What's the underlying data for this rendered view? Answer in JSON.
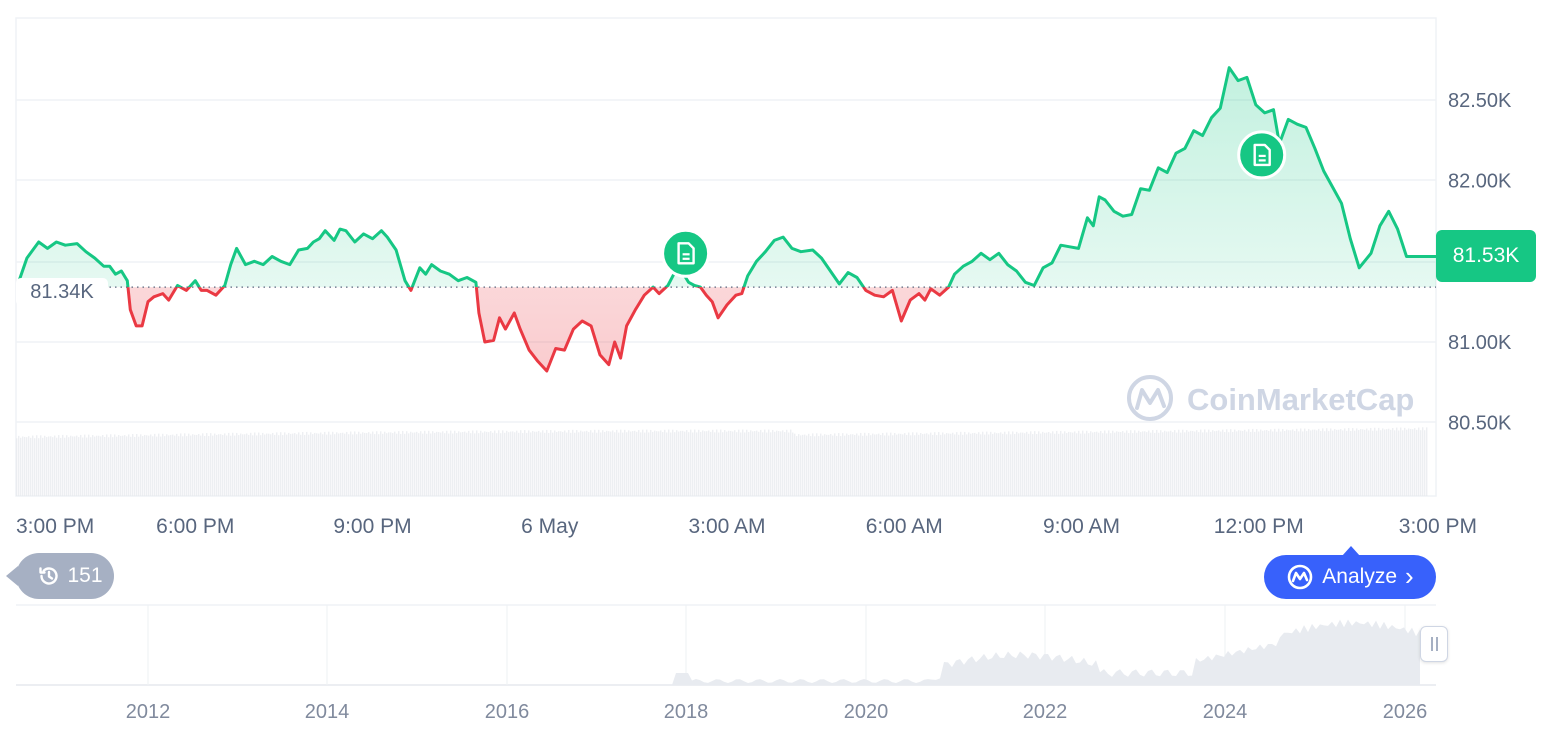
{
  "chart_data": {
    "type": "area",
    "y_label_last": "81.53K",
    "baseline_label": "81.34K",
    "baseline": 81340,
    "ylim": [
      80400,
      82980
    ],
    "y_ticks": [
      {
        "value": 82500,
        "label": "82.50K"
      },
      {
        "value": 82000,
        "label": "82.00K"
      },
      {
        "value": 81000,
        "label": "81.00K"
      },
      {
        "value": 80500,
        "label": "80.50K"
      }
    ],
    "x_ticks": [
      "3:00 PM",
      "6:00 PM",
      "9:00 PM",
      "6 May",
      "3:00 AM",
      "6:00 AM",
      "9:00 AM",
      "12:00 PM",
      "3:00 PM"
    ],
    "x_tick_hours": [
      0,
      3,
      6,
      9,
      12,
      15,
      18,
      21,
      24
    ],
    "x_range_hours": [
      -0.05,
      24
    ],
    "series": [
      {
        "up_color": "#16c784",
        "down_color": "#ea3943",
        "points": [
          [
            0.0,
            81360
          ],
          [
            0.15,
            81520
          ],
          [
            0.35,
            81620
          ],
          [
            0.5,
            81580
          ],
          [
            0.65,
            81620
          ],
          [
            0.8,
            81600
          ],
          [
            1.0,
            81610
          ],
          [
            1.15,
            81560
          ],
          [
            1.3,
            81520
          ],
          [
            1.45,
            81470
          ],
          [
            1.55,
            81470
          ],
          [
            1.65,
            81420
          ],
          [
            1.75,
            81440
          ],
          [
            1.85,
            81380
          ],
          [
            1.9,
            81200
          ],
          [
            2.0,
            81100
          ],
          [
            2.1,
            81100
          ],
          [
            2.2,
            81250
          ],
          [
            2.3,
            81280
          ],
          [
            2.45,
            81300
          ],
          [
            2.55,
            81260
          ],
          [
            2.7,
            81350
          ],
          [
            2.85,
            81320
          ],
          [
            3.0,
            81380
          ],
          [
            3.1,
            81320
          ],
          [
            3.2,
            81320
          ],
          [
            3.35,
            81290
          ],
          [
            3.5,
            81350
          ],
          [
            3.6,
            81480
          ],
          [
            3.7,
            81580
          ],
          [
            3.85,
            81480
          ],
          [
            4.0,
            81500
          ],
          [
            4.15,
            81480
          ],
          [
            4.3,
            81530
          ],
          [
            4.45,
            81500
          ],
          [
            4.6,
            81480
          ],
          [
            4.75,
            81570
          ],
          [
            4.9,
            81580
          ],
          [
            5.0,
            81620
          ],
          [
            5.1,
            81640
          ],
          [
            5.2,
            81690
          ],
          [
            5.35,
            81630
          ],
          [
            5.45,
            81700
          ],
          [
            5.55,
            81690
          ],
          [
            5.7,
            81620
          ],
          [
            5.85,
            81670
          ],
          [
            6.0,
            81640
          ],
          [
            6.15,
            81690
          ],
          [
            6.25,
            81650
          ],
          [
            6.4,
            81570
          ],
          [
            6.55,
            81380
          ],
          [
            6.65,
            81320
          ],
          [
            6.8,
            81460
          ],
          [
            6.9,
            81420
          ],
          [
            7.0,
            81480
          ],
          [
            7.15,
            81440
          ],
          [
            7.3,
            81420
          ],
          [
            7.45,
            81380
          ],
          [
            7.6,
            81400
          ],
          [
            7.75,
            81370
          ],
          [
            7.8,
            81180
          ],
          [
            7.9,
            81000
          ],
          [
            8.05,
            81010
          ],
          [
            8.15,
            81150
          ],
          [
            8.25,
            81080
          ],
          [
            8.4,
            81180
          ],
          [
            8.5,
            81080
          ],
          [
            8.65,
            80950
          ],
          [
            8.8,
            80880
          ],
          [
            8.95,
            80820
          ],
          [
            9.1,
            80960
          ],
          [
            9.25,
            80950
          ],
          [
            9.4,
            81080
          ],
          [
            9.55,
            81130
          ],
          [
            9.7,
            81100
          ],
          [
            9.85,
            80920
          ],
          [
            10.0,
            80860
          ],
          [
            10.1,
            81000
          ],
          [
            10.2,
            80900
          ],
          [
            10.3,
            81100
          ],
          [
            10.45,
            81200
          ],
          [
            10.6,
            81290
          ],
          [
            10.75,
            81340
          ],
          [
            10.85,
            81300
          ],
          [
            11.0,
            81350
          ],
          [
            11.1,
            81420
          ],
          [
            11.2,
            81450
          ],
          [
            11.3,
            81400
          ],
          [
            11.35,
            81370
          ],
          [
            11.45,
            81350
          ],
          [
            11.55,
            81340
          ],
          [
            11.65,
            81290
          ],
          [
            11.75,
            81250
          ],
          [
            11.85,
            81150
          ],
          [
            12.0,
            81230
          ],
          [
            12.15,
            81290
          ],
          [
            12.25,
            81300
          ],
          [
            12.35,
            81410
          ],
          [
            12.5,
            81500
          ],
          [
            12.65,
            81560
          ],
          [
            12.8,
            81630
          ],
          [
            12.95,
            81650
          ],
          [
            13.1,
            81580
          ],
          [
            13.25,
            81560
          ],
          [
            13.45,
            81570
          ],
          [
            13.6,
            81520
          ],
          [
            13.75,
            81440
          ],
          [
            13.9,
            81360
          ],
          [
            14.05,
            81430
          ],
          [
            14.2,
            81400
          ],
          [
            14.35,
            81320
          ],
          [
            14.5,
            81290
          ],
          [
            14.65,
            81280
          ],
          [
            14.8,
            81320
          ],
          [
            14.95,
            81130
          ],
          [
            15.1,
            81260
          ],
          [
            15.25,
            81300
          ],
          [
            15.35,
            81260
          ],
          [
            15.45,
            81330
          ],
          [
            15.6,
            81290
          ],
          [
            15.75,
            81340
          ],
          [
            15.85,
            81420
          ],
          [
            16.0,
            81470
          ],
          [
            16.15,
            81500
          ],
          [
            16.3,
            81550
          ],
          [
            16.45,
            81510
          ],
          [
            16.6,
            81550
          ],
          [
            16.75,
            81480
          ],
          [
            16.9,
            81440
          ],
          [
            17.05,
            81370
          ],
          [
            17.2,
            81350
          ],
          [
            17.35,
            81460
          ],
          [
            17.5,
            81490
          ],
          [
            17.65,
            81600
          ],
          [
            17.8,
            81590
          ],
          [
            17.95,
            81580
          ],
          [
            18.1,
            81770
          ],
          [
            18.2,
            81720
          ],
          [
            18.3,
            81900
          ],
          [
            18.4,
            81880
          ],
          [
            18.55,
            81810
          ],
          [
            18.7,
            81780
          ],
          [
            18.85,
            81790
          ],
          [
            19.0,
            81950
          ],
          [
            19.15,
            81940
          ],
          [
            19.3,
            82080
          ],
          [
            19.45,
            82050
          ],
          [
            19.6,
            82170
          ],
          [
            19.75,
            82200
          ],
          [
            19.9,
            82310
          ],
          [
            20.05,
            82280
          ],
          [
            20.2,
            82390
          ],
          [
            20.35,
            82450
          ],
          [
            20.5,
            82700
          ],
          [
            20.65,
            82620
          ],
          [
            20.8,
            82640
          ],
          [
            20.95,
            82470
          ],
          [
            21.1,
            82420
          ],
          [
            21.25,
            82440
          ],
          [
            21.35,
            82230
          ],
          [
            21.5,
            82380
          ],
          [
            21.65,
            82350
          ],
          [
            21.8,
            82330
          ],
          [
            21.95,
            82200
          ],
          [
            22.1,
            82060
          ],
          [
            22.25,
            81960
          ],
          [
            22.4,
            81860
          ],
          [
            22.55,
            81640
          ],
          [
            22.7,
            81460
          ],
          [
            22.9,
            81550
          ],
          [
            23.05,
            81720
          ],
          [
            23.2,
            81810
          ],
          [
            23.35,
            81700
          ],
          [
            23.5,
            81530
          ],
          [
            24.0,
            81530
          ]
        ]
      }
    ],
    "news_markers": [
      {
        "name": "news-marker-1",
        "x": 11.3,
        "y": 81550
      },
      {
        "name": "news-marker-2",
        "x": 21.05,
        "y": 82160
      }
    ],
    "watermark": "CoinMarketCap",
    "navigator": {
      "x_ticks": [
        "2012",
        "2014",
        "2016",
        "2018",
        "2020",
        "2022",
        "2024",
        "2026"
      ],
      "history_count": "151"
    },
    "colors": {
      "up": "#16c784",
      "down": "#ea3943",
      "grid": "#eff2f5",
      "axis_text": "#58667e",
      "analyze": "#3861fb"
    }
  },
  "ui": {
    "analyze_label": "Analyze",
    "analyze_chevron": "›",
    "history_count": "151"
  }
}
